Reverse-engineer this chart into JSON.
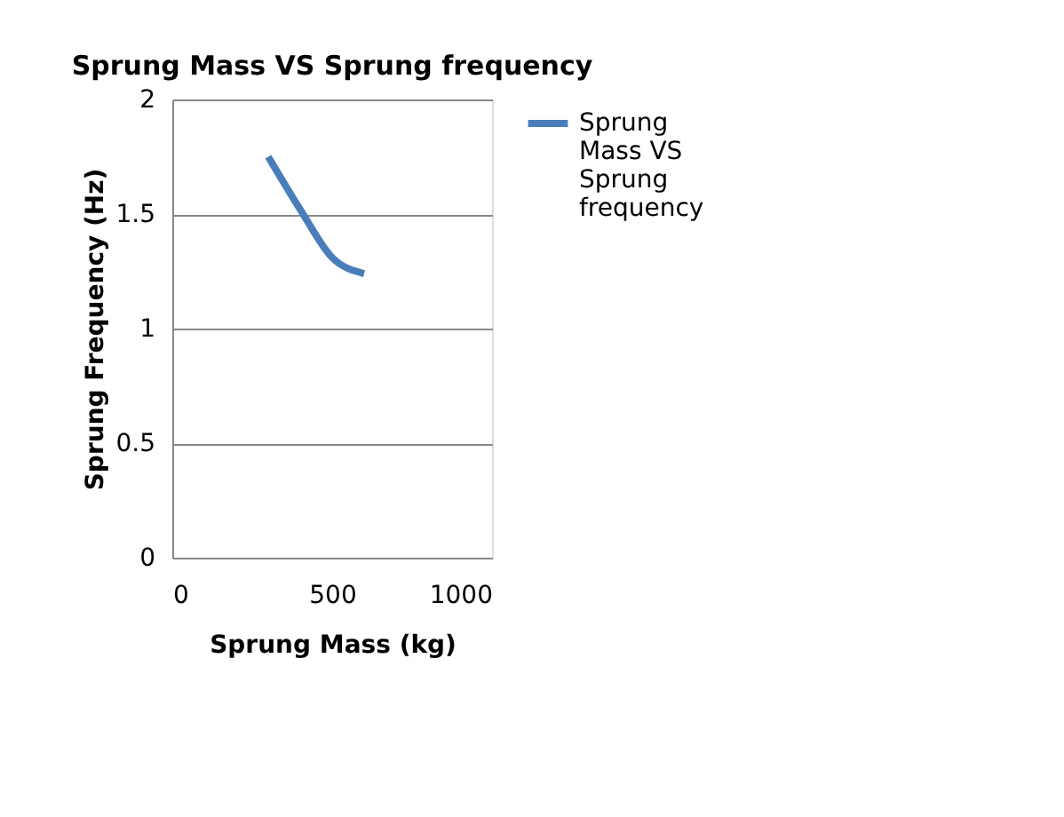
{
  "chart_data": {
    "type": "line",
    "title": "Sprung Mass VS Sprung frequency",
    "xlabel": "Sprung Mass (kg)",
    "ylabel": "Sprung Frequency (Hz)",
    "x": [
      300,
      400,
      500,
      600
    ],
    "series": [
      {
        "name": "Sprung Mass VS Sprung frequency",
        "color": "#4a7ebb",
        "values": [
          1.75,
          1.52,
          1.31,
          1.24
        ]
      }
    ],
    "xlim": [
      0,
      1000
    ],
    "xticks": [
      0,
      500,
      1000
    ],
    "ylim": [
      0,
      2
    ],
    "yticks": [
      0,
      0.5,
      1,
      1.5,
      2
    ],
    "grid": "y",
    "legend": "right",
    "marker": "none",
    "line_style": "solid"
  }
}
